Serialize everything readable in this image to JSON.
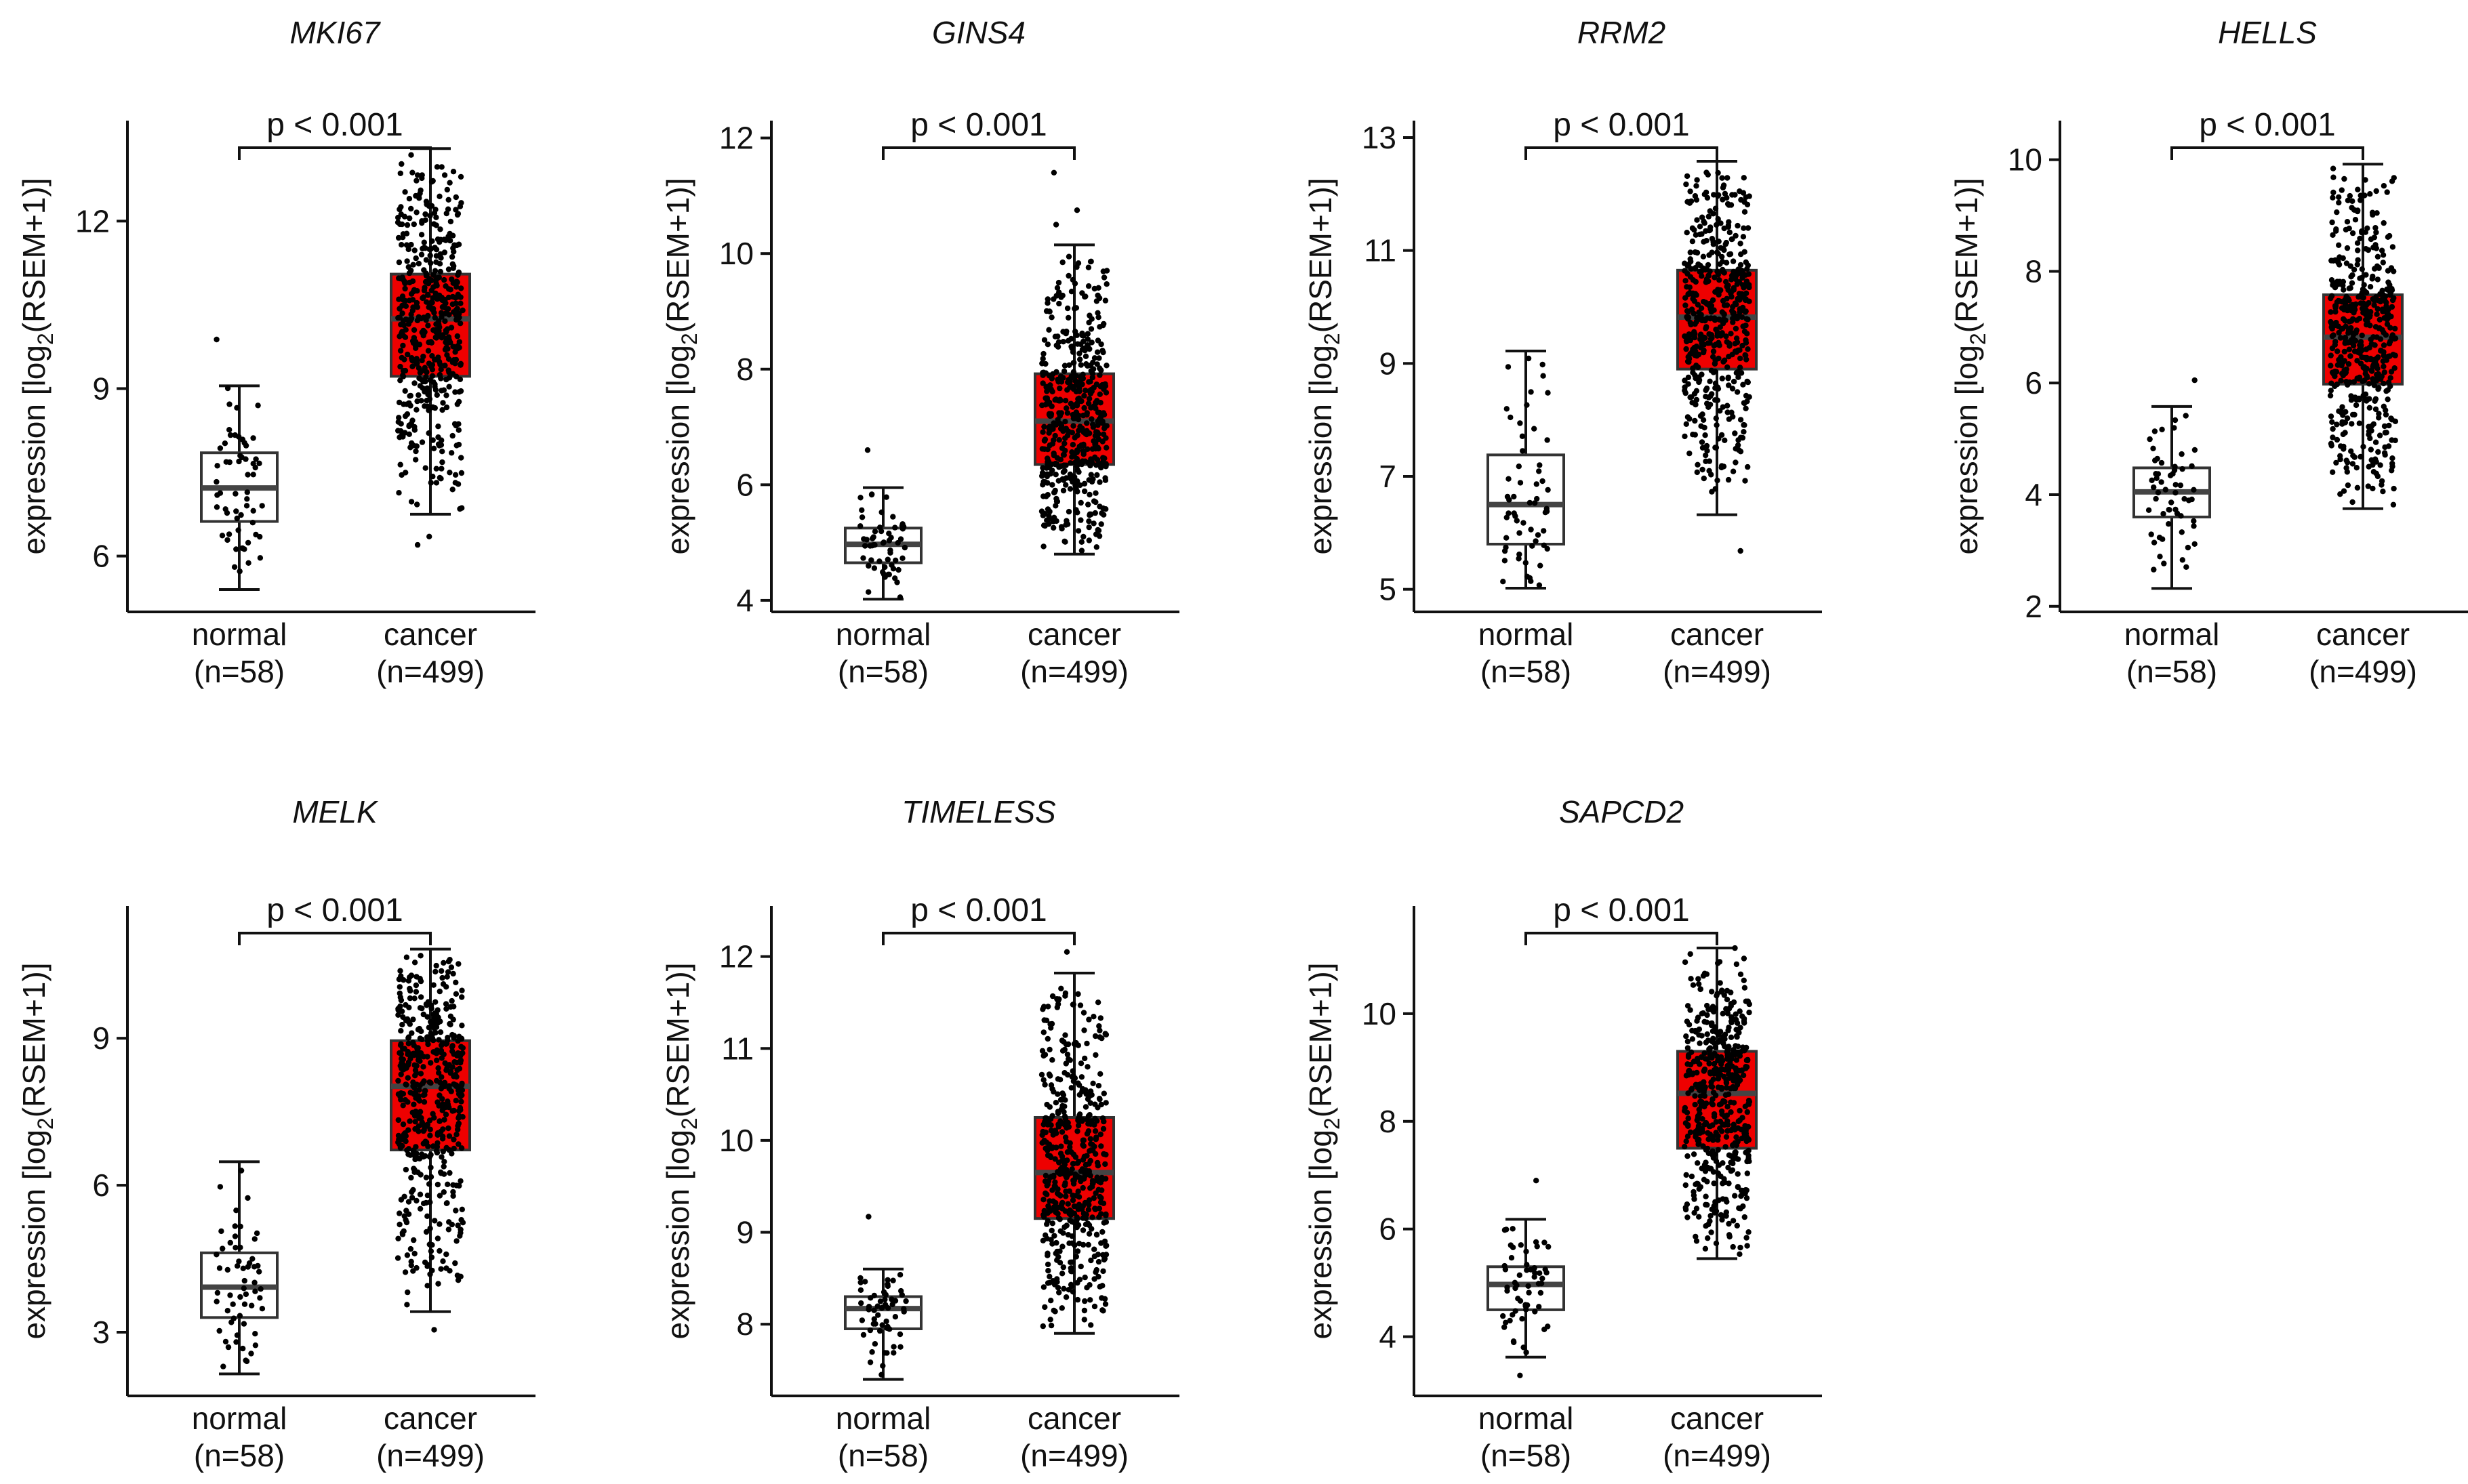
{
  "figure": {
    "ylabel_prefix": "expression [log",
    "ylabel_sub": "2",
    "ylabel_suffix": "(RSEM+1)]"
  },
  "colors": {
    "cancer_fill": "#ee0000",
    "normal_fill": "#ffffff",
    "axis": "#111111",
    "point": "#000000"
  },
  "chart_data": [
    {
      "type": "box",
      "title": "MKI67",
      "ylim": [
        5.0,
        13.8
      ],
      "yticks": [
        6,
        9,
        12
      ],
      "annotation": "p < 0.001",
      "groups": [
        {
          "name": "normal",
          "n_label": "(n=58)",
          "n": 58,
          "whisker_low": 5.4,
          "q1": 6.62,
          "median": 7.22,
          "q3": 7.85,
          "whisker_high": 9.05,
          "outliers": [
            9.88
          ]
        },
        {
          "name": "cancer",
          "n_label": "(n=499)",
          "n": 499,
          "whisker_low": 6.75,
          "q1": 9.22,
          "median": 10.25,
          "q3": 11.05,
          "whisker_high": 13.3,
          "outliers": [
            6.2,
            6.35
          ]
        }
      ]
    },
    {
      "type": "box",
      "title": "GINS4",
      "ylim": [
        3.8,
        12.3
      ],
      "yticks": [
        4,
        6,
        8,
        10,
        12
      ],
      "annotation": "p < 0.001",
      "groups": [
        {
          "name": "normal",
          "n_label": "(n=58)",
          "n": 58,
          "whisker_low": 4.02,
          "q1": 4.65,
          "median": 4.97,
          "q3": 5.25,
          "whisker_high": 5.95,
          "outliers": [
            6.6
          ]
        },
        {
          "name": "cancer",
          "n_label": "(n=499)",
          "n": 499,
          "whisker_low": 4.8,
          "q1": 6.35,
          "median": 7.1,
          "q3": 7.92,
          "whisker_high": 10.15,
          "outliers": [
            10.5,
            10.75,
            11.4
          ]
        }
      ]
    },
    {
      "type": "box",
      "title": "RRM2",
      "ylim": [
        4.6,
        13.3
      ],
      "yticks": [
        5,
        7,
        9,
        11,
        13
      ],
      "annotation": "p < 0.001",
      "groups": [
        {
          "name": "normal",
          "n_label": "(n=58)",
          "n": 58,
          "whisker_low": 5.02,
          "q1": 5.8,
          "median": 6.5,
          "q3": 7.38,
          "whisker_high": 9.22,
          "outliers": []
        },
        {
          "name": "cancer",
          "n_label": "(n=499)",
          "n": 499,
          "whisker_low": 6.32,
          "q1": 8.9,
          "median": 9.82,
          "q3": 10.65,
          "whisker_high": 12.58,
          "outliers": [
            5.68
          ]
        }
      ]
    },
    {
      "type": "box",
      "title": "HELLS",
      "ylim": [
        1.9,
        10.7
      ],
      "yticks": [
        2,
        4,
        6,
        8,
        10
      ],
      "annotation": "p < 0.001",
      "groups": [
        {
          "name": "normal",
          "n_label": "(n=58)",
          "n": 58,
          "whisker_low": 2.32,
          "q1": 3.6,
          "median": 4.05,
          "q3": 4.48,
          "whisker_high": 5.58,
          "outliers": [
            6.05
          ]
        },
        {
          "name": "cancer",
          "n_label": "(n=499)",
          "n": 499,
          "whisker_low": 3.75,
          "q1": 5.98,
          "median": 6.82,
          "q3": 7.58,
          "whisker_high": 9.92,
          "outliers": []
        }
      ]
    },
    {
      "type": "box",
      "title": "MELK",
      "ylim": [
        1.7,
        11.7
      ],
      "yticks": [
        3,
        6,
        9
      ],
      "annotation": "p < 0.001",
      "groups": [
        {
          "name": "normal",
          "n_label": "(n=58)",
          "n": 58,
          "whisker_low": 2.15,
          "q1": 3.3,
          "median": 3.92,
          "q3": 4.62,
          "whisker_high": 6.48,
          "outliers": []
        },
        {
          "name": "cancer",
          "n_label": "(n=499)",
          "n": 499,
          "whisker_low": 3.42,
          "q1": 6.72,
          "median": 8.02,
          "q3": 8.95,
          "whisker_high": 10.82,
          "outliers": [
            3.05
          ]
        }
      ]
    },
    {
      "type": "box",
      "title": "TIMELESS",
      "ylim": [
        7.22,
        12.55
      ],
      "yticks": [
        8,
        9,
        10,
        11,
        12
      ],
      "annotation": "p < 0.001",
      "groups": [
        {
          "name": "normal",
          "n_label": "(n=58)",
          "n": 58,
          "whisker_low": 7.4,
          "q1": 7.95,
          "median": 8.17,
          "q3": 8.3,
          "whisker_high": 8.6,
          "outliers": [
            9.17
          ]
        },
        {
          "name": "cancer",
          "n_label": "(n=499)",
          "n": 499,
          "whisker_low": 7.9,
          "q1": 9.15,
          "median": 9.65,
          "q3": 10.25,
          "whisker_high": 11.82,
          "outliers": [
            12.05
          ]
        }
      ]
    },
    {
      "type": "box",
      "title": "SAPCD2",
      "ylim": [
        2.9,
        12.0
      ],
      "yticks": [
        4,
        6,
        8,
        10
      ],
      "annotation": "p < 0.001",
      "groups": [
        {
          "name": "normal",
          "n_label": "(n=58)",
          "n": 58,
          "whisker_low": 3.62,
          "q1": 4.5,
          "median": 4.97,
          "q3": 5.3,
          "whisker_high": 6.18,
          "outliers": [
            6.9,
            3.28
          ]
        },
        {
          "name": "cancer",
          "n_label": "(n=499)",
          "n": 499,
          "whisker_low": 5.45,
          "q1": 7.5,
          "median": 8.52,
          "q3": 9.3,
          "whisker_high": 11.22,
          "outliers": []
        }
      ]
    }
  ]
}
